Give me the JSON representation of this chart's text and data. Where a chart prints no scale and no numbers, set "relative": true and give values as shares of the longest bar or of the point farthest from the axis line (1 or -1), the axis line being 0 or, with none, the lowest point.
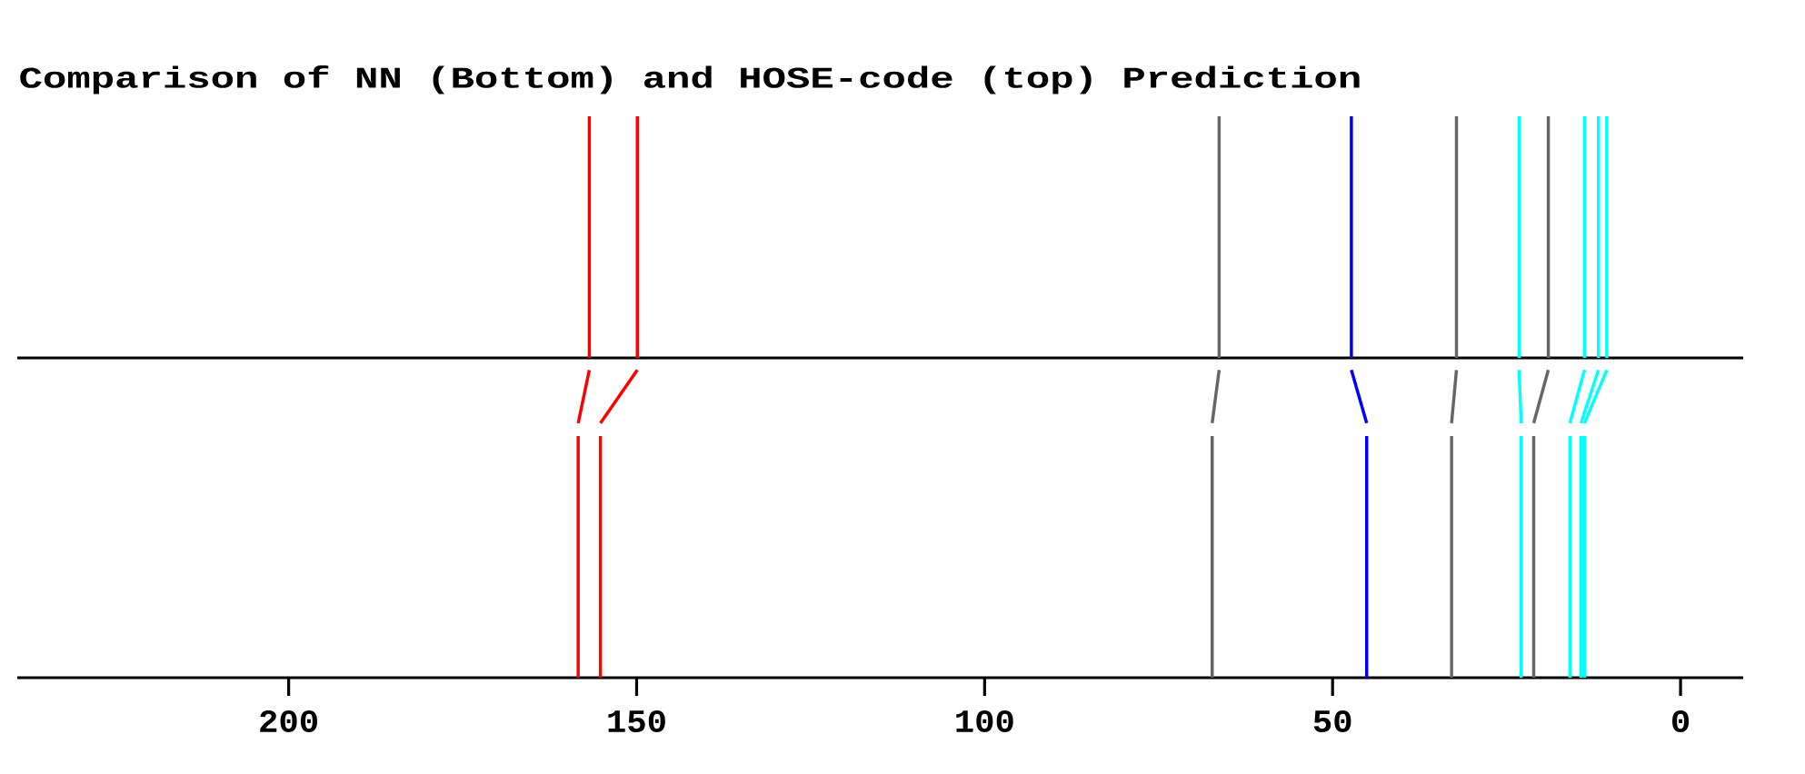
{
  "chart_data": [
    {
      "type": "bar",
      "title": "Comparison of NN (Bottom) and HOSE-code (top) Prediction",
      "relative": true,
      "xlim": [
        239,
        -9
      ],
      "tick_labels": false,
      "series": [
        {
          "type": "bar",
          "x": [
            156.8,
            149.9,
            66.3,
            47.3,
            32.2,
            23.2,
            19.0,
            13.8,
            11.8,
            10.6
          ],
          "values": [
            1,
            1,
            1,
            1,
            1,
            1,
            1,
            1,
            1,
            1
          ],
          "colors": [
            "#ff0000",
            "#ff0000",
            "#666666",
            "#0000ff",
            "#666666",
            "#00ffff",
            "#666666",
            "#00ffff",
            "#00ffff",
            "#00ffff"
          ]
        },
        {
          "type": "line",
          "x": [
            156.8,
            158.4
          ],
          "values": [
            -0.05,
            -0.27
          ],
          "color": "#ff0000"
        },
        {
          "type": "line",
          "x": [
            149.9,
            155.2
          ],
          "values": [
            -0.05,
            -0.27
          ],
          "color": "#ff0000"
        },
        {
          "type": "line",
          "x": [
            66.3,
            67.3
          ],
          "values": [
            -0.05,
            -0.27
          ],
          "color": "#666666"
        },
        {
          "type": "line",
          "x": [
            47.3,
            45.1
          ],
          "values": [
            -0.05,
            -0.27
          ],
          "color": "#0000ff"
        },
        {
          "type": "line",
          "x": [
            32.2,
            32.9
          ],
          "values": [
            -0.05,
            -0.27
          ],
          "color": "#666666"
        },
        {
          "type": "line",
          "x": [
            23.2,
            22.9
          ],
          "values": [
            -0.05,
            -0.27
          ],
          "color": "#00ffff"
        },
        {
          "type": "line",
          "x": [
            19.0,
            21.1
          ],
          "values": [
            -0.05,
            -0.27
          ],
          "color": "#666666"
        },
        {
          "type": "line",
          "x": [
            13.8,
            15.9
          ],
          "values": [
            -0.05,
            -0.27
          ],
          "color": "#00ffff"
        },
        {
          "type": "line",
          "x": [
            11.8,
            14.3
          ],
          "values": [
            -0.05,
            -0.27
          ],
          "color": "#00ffff"
        },
        {
          "type": "line",
          "x": [
            10.6,
            13.8
          ],
          "values": [
            -0.05,
            -0.27
          ],
          "color": "#00ffff"
        }
      ]
    },
    {
      "type": "bar",
      "relative": true,
      "xlim": [
        239,
        -9
      ],
      "xticks": [
        200,
        150,
        100,
        50,
        0
      ],
      "x": [
        158.4,
        155.2,
        67.3,
        45.1,
        32.9,
        22.9,
        21.1,
        15.9,
        14.3,
        13.8
      ],
      "values": [
        1,
        1,
        1,
        1,
        1,
        1,
        1,
        1,
        1,
        1
      ],
      "colors": [
        "#ff0000",
        "#ff0000",
        "#666666",
        "#0000ff",
        "#666666",
        "#00ffff",
        "#666666",
        "#00ffff",
        "#00ffff",
        "#00ffff"
      ]
    }
  ]
}
